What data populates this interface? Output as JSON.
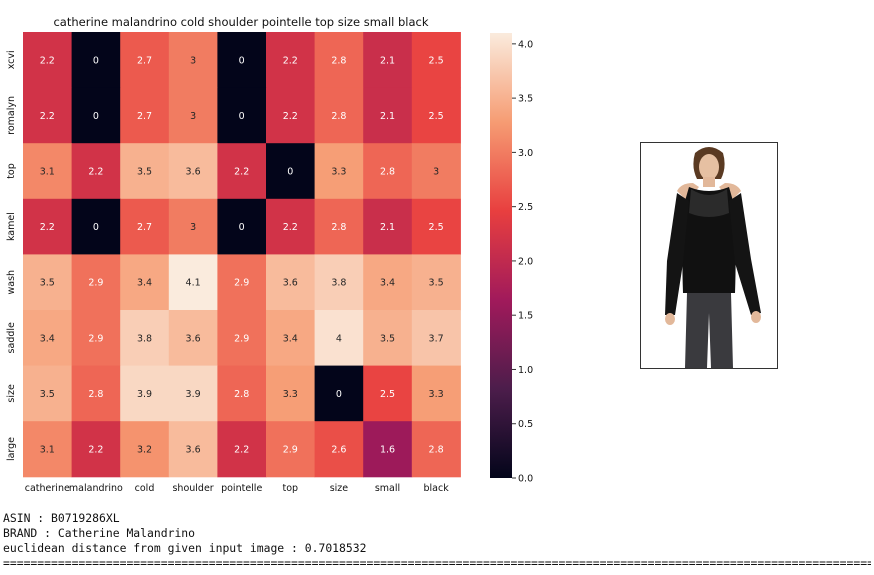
{
  "chart_data": {
    "type": "heatmap",
    "title": "catherine malandrino cold shoulder pointelle top size small black",
    "x_labels": [
      "catherine",
      "malandrino",
      "cold",
      "shoulder",
      "pointelle",
      "top",
      "size",
      "small",
      "black"
    ],
    "y_labels": [
      "xcvi",
      "romalyn",
      "top",
      "kamel",
      "wash",
      "saddle",
      "size",
      "large"
    ],
    "values": [
      [
        2.2,
        0,
        2.7,
        3,
        0,
        2.2,
        2.8,
        2.1,
        2.5
      ],
      [
        2.2,
        0,
        2.7,
        3,
        0,
        2.2,
        2.8,
        2.1,
        2.5
      ],
      [
        3.1,
        2.2,
        3.5,
        3.6,
        2.2,
        0,
        3.3,
        2.8,
        3
      ],
      [
        2.2,
        0,
        2.7,
        3,
        0,
        2.2,
        2.8,
        2.1,
        2.5
      ],
      [
        3.5,
        2.9,
        3.4,
        4.1,
        2.9,
        3.6,
        3.8,
        3.4,
        3.5
      ],
      [
        3.4,
        2.9,
        3.8,
        3.6,
        2.9,
        3.4,
        4,
        3.5,
        3.7
      ],
      [
        3.5,
        2.8,
        3.9,
        3.9,
        2.8,
        3.3,
        0,
        2.5,
        3.3
      ],
      [
        3.1,
        2.2,
        3.2,
        3.6,
        2.2,
        2.9,
        2.6,
        1.6,
        2.8
      ]
    ],
    "colorbar": {
      "range": [
        0,
        4.1
      ],
      "ticks": [
        "0.0",
        "0.5",
        "1.0",
        "1.5",
        "2.0",
        "2.5",
        "3.0",
        "3.5",
        "4.0"
      ]
    },
    "colormap_stops": [
      "#03051a",
      "#4c1d4b",
      "#a11a5b",
      "#e83f3f",
      "#f69c73",
      "#faebdd"
    ]
  },
  "product": {
    "image_icon": "black-cold-shoulder-sweater-photo"
  },
  "info": {
    "asin_line": "ASIN : B0719286XL",
    "brand_line": "BRAND : Catherine Malandrino",
    "distance_line": "euclidean distance from given input image : 0.7018532",
    "separator": "============================================================================================================================================="
  }
}
